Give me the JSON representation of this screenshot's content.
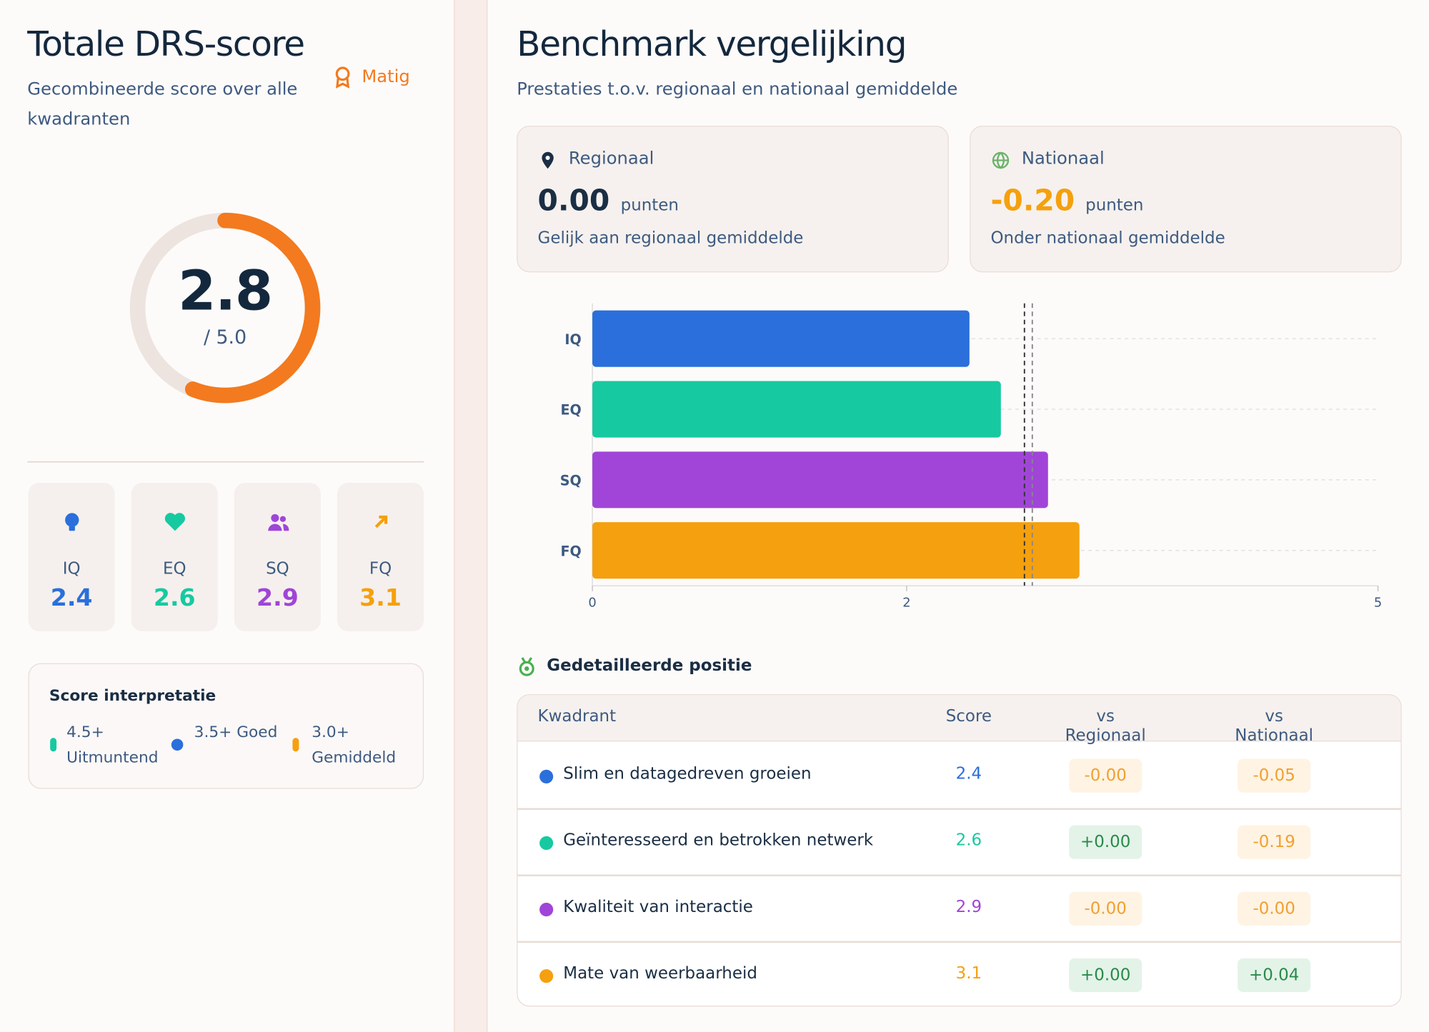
{
  "left": {
    "title": "Totale DRS-score",
    "subtitle": "Gecombineerde score over alle kwadranten",
    "badge": "Matig",
    "gauge": {
      "score": 2.8,
      "max": 5,
      "max_label": "/ 5.0",
      "color": "#f37a1f",
      "track": "#ede4df"
    },
    "quadrants": [
      {
        "label": "IQ",
        "value": 2.4,
        "color": "#2a6fdb"
      },
      {
        "label": "EQ",
        "value": 2.6,
        "color": "#17c9a0"
      },
      {
        "label": "SQ",
        "value": 2.9,
        "color": "#a045d8"
      },
      {
        "label": "FQ",
        "value": 3.1,
        "color": "#f5a00e"
      }
    ],
    "interpretation": {
      "title": "Score interpretatie",
      "items": [
        {
          "text": "4.5+ Uitmuntend",
          "color": "#17c9a0"
        },
        {
          "text": "3.5+ Goed",
          "color": "#2a6fdb"
        },
        {
          "text": "3.0+ Gemiddeld",
          "color": "#f5a00e"
        }
      ]
    }
  },
  "right": {
    "title": "Benchmark vergelijking",
    "subtitle": "Prestaties t.o.v. regionaal en nationaal gemiddelde",
    "cards": [
      {
        "label": "Regionaal",
        "value": 0,
        "value_label": "0.00",
        "unit": "punten",
        "note": "Gelijk aan regionaal gemiddelde",
        "color": "#1a2e44"
      },
      {
        "label": "Nationaal",
        "value": -0.2,
        "value_label": "-0.20",
        "unit": "punten",
        "note": "Onder nationaal gemiddelde",
        "color": "#f5a00e"
      }
    ],
    "detail_title": "Gedetailleerde positie",
    "table": {
      "columns": [
        "Kwadrant",
        "Score",
        "vs Regionaal",
        "vs Nationaal"
      ],
      "rows": [
        {
          "color": "#2a6fdb",
          "cells": [
            "Slim en datagedreven groeien",
            2.4,
            "-0.00",
            "-0.05"
          ]
        },
        {
          "color": "#17c9a0",
          "cells": [
            "Geïnteresseerd en betrokken netwerk",
            2.6,
            "+0.00",
            "-0.19"
          ]
        },
        {
          "color": "#a045d8",
          "cells": [
            "Kwaliteit van interactie",
            2.9,
            "-0.00",
            "-0.00"
          ]
        },
        {
          "color": "#f5a00e",
          "cells": [
            "Mate van weerbaarheid",
            3.1,
            "+0.00",
            "+0.04"
          ]
        }
      ]
    }
  },
  "chart_data": {
    "type": "bar",
    "orientation": "horizontal",
    "categories": [
      "IQ",
      "EQ",
      "SQ",
      "FQ"
    ],
    "values": [
      2.4,
      2.6,
      2.9,
      3.1
    ],
    "colors": [
      "#2a6fdb",
      "#17c9a0",
      "#a045d8",
      "#f5a00e"
    ],
    "xlim": [
      0,
      5
    ],
    "xticks": [
      0,
      2,
      5
    ],
    "reference_lines": [
      2.75,
      2.8
    ],
    "grid": true
  }
}
